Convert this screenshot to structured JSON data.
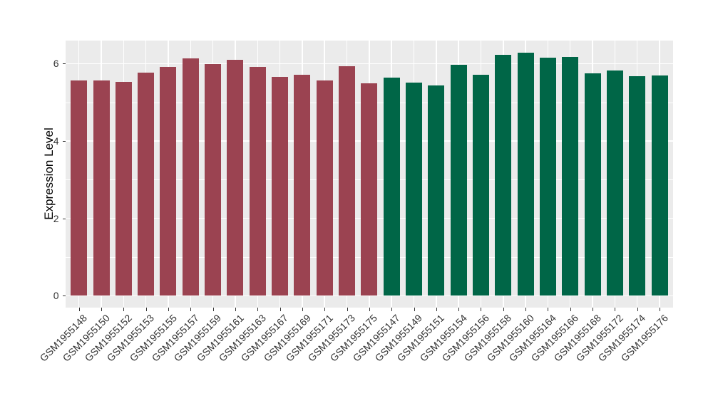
{
  "chart_data": {
    "type": "bar",
    "title": "",
    "xlabel": "",
    "ylabel": "Expression Level",
    "ylim": [
      -0.31,
      6.6
    ],
    "yticks": [
      0,
      2,
      4,
      6
    ],
    "ytick_labels": [
      "0",
      "2",
      "4",
      "6"
    ],
    "grid": "major-and-minor, white on gray panel",
    "legend": "none",
    "panel_bg": "#EBEBEB",
    "grid_color": "#FFFFFF",
    "tick_color": "#333333",
    "categories": [
      "GSM1955148",
      "GSM1955150",
      "GSM1955152",
      "GSM1955153",
      "GSM1955155",
      "GSM1955157",
      "GSM1955159",
      "GSM1955161",
      "GSM1955163",
      "GSM1955167",
      "GSM1955169",
      "GSM1955171",
      "GSM1955173",
      "GSM1955175",
      "GSM1955147",
      "GSM1955149",
      "GSM1955151",
      "GSM1955154",
      "GSM1955156",
      "GSM1955158",
      "GSM1955160",
      "GSM1955164",
      "GSM1955166",
      "GSM1955168",
      "GSM1955172",
      "GSM1955174",
      "GSM1955176"
    ],
    "values": [
      5.57,
      5.57,
      5.53,
      5.77,
      5.91,
      6.14,
      5.99,
      6.1,
      5.91,
      5.66,
      5.72,
      5.57,
      5.93,
      5.49,
      5.63,
      5.51,
      5.44,
      5.97,
      5.71,
      6.23,
      6.28,
      6.16,
      6.18,
      5.75,
      5.82,
      5.67,
      5.69
    ],
    "groups": [
      "a",
      "a",
      "a",
      "a",
      "a",
      "a",
      "a",
      "a",
      "a",
      "a",
      "a",
      "a",
      "a",
      "a",
      "b",
      "b",
      "b",
      "b",
      "b",
      "b",
      "b",
      "b",
      "b",
      "b",
      "b",
      "b",
      "b"
    ],
    "group_colors": {
      "a": "#9B4351",
      "b": "#006647"
    }
  }
}
